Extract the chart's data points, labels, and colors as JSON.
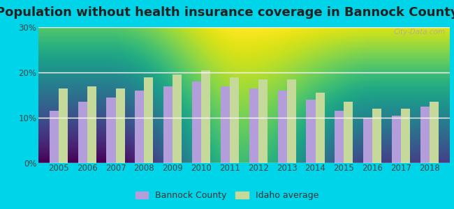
{
  "title": "Population without health insurance coverage in Bannock County",
  "years": [
    2005,
    2006,
    2007,
    2008,
    2009,
    2010,
    2011,
    2012,
    2013,
    2014,
    2015,
    2016,
    2017,
    2018
  ],
  "bannock": [
    11.5,
    13.5,
    14.5,
    16.0,
    17.0,
    18.0,
    17.0,
    16.5,
    16.0,
    14.0,
    11.5,
    9.8,
    10.5,
    12.5
  ],
  "idaho": [
    16.5,
    17.0,
    16.5,
    19.0,
    19.5,
    20.5,
    19.0,
    18.5,
    18.5,
    15.5,
    13.5,
    12.0,
    12.0,
    13.5
  ],
  "bannock_color": "#b39ddb",
  "idaho_color": "#c5d99b",
  "bg_outer": "#00d4e8",
  "bg_chart_bottom": "#d4eedb",
  "bg_chart_top": "#f0faf8",
  "ylabel_ticks": [
    "0%",
    "10%",
    "20%",
    "30%"
  ],
  "yticks": [
    0,
    10,
    20,
    30
  ],
  "ylim": [
    0,
    30
  ],
  "legend_bannock": "Bannock County",
  "legend_idaho": "Idaho average",
  "watermark": "City-Data.com",
  "bar_width": 0.32,
  "title_fontsize": 13,
  "tick_fontsize": 8.5,
  "legend_fontsize": 9
}
